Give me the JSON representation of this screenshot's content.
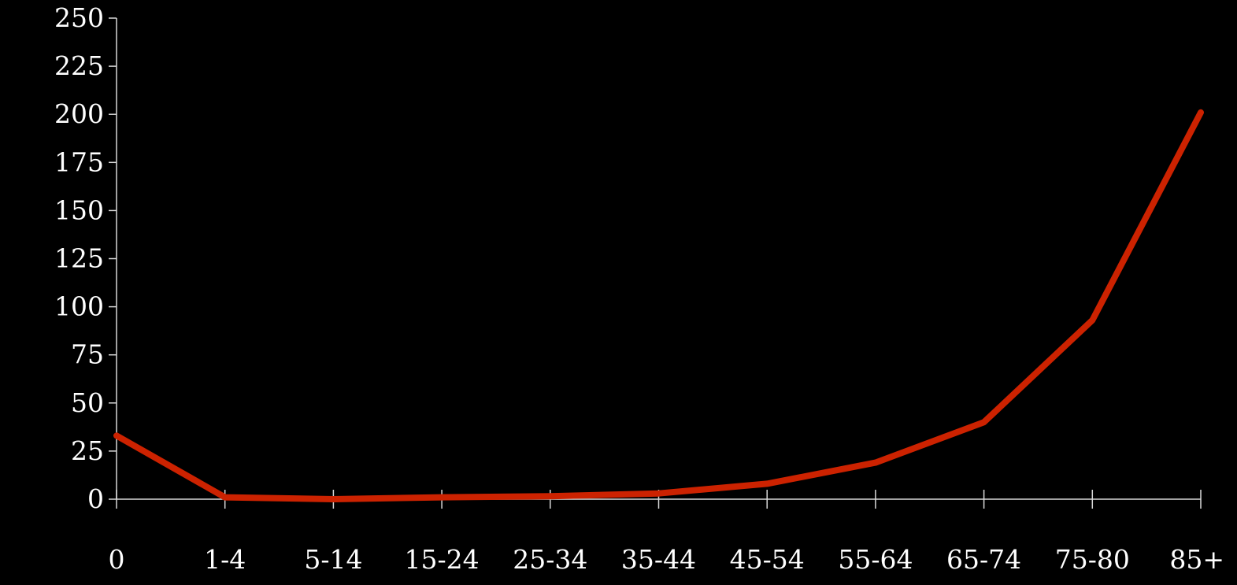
{
  "chart_data": {
    "type": "line",
    "title": "",
    "xlabel": "",
    "ylabel": "",
    "categories": [
      "0",
      "1-4",
      "5-14",
      "15-24",
      "25-34",
      "35-44",
      "45-54",
      "55-64",
      "65-74",
      "75-80",
      "85+"
    ],
    "series": [
      {
        "values": [
          33,
          1,
          0,
          1,
          1.5,
          3,
          8,
          19,
          40,
          93,
          201
        ]
      }
    ],
    "yticks": [
      "0",
      "25",
      "50",
      "75",
      "100",
      "125",
      "150",
      "175",
      "200",
      "225",
      "250"
    ],
    "ylim": [
      0,
      250
    ],
    "grid": false,
    "legend": "none",
    "colors": {
      "background": "#000000",
      "series": "#cc2200",
      "axis": "#d8d8d8",
      "text": "#ffffff"
    }
  }
}
